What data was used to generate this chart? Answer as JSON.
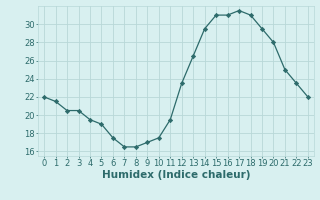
{
  "x": [
    0,
    1,
    2,
    3,
    4,
    5,
    6,
    7,
    8,
    9,
    10,
    11,
    12,
    13,
    14,
    15,
    16,
    17,
    18,
    19,
    20,
    21,
    22,
    23
  ],
  "y": [
    22,
    21.5,
    20.5,
    20.5,
    19.5,
    19,
    17.5,
    16.5,
    16.5,
    17,
    17.5,
    19.5,
    23.5,
    26.5,
    29.5,
    31,
    31,
    31.5,
    31,
    29.5,
    28,
    25,
    23.5,
    22
  ],
  "line_color": "#2d6b6b",
  "marker": "D",
  "marker_size": 2.2,
  "bg_color": "#d8f0f0",
  "grid_color": "#b8d8d8",
  "xlabel": "Humidex (Indice chaleur)",
  "xlabel_color": "#2d6b6b",
  "xlim": [
    -0.5,
    23.5
  ],
  "ylim": [
    15.5,
    32
  ],
  "yticks": [
    16,
    18,
    20,
    22,
    24,
    26,
    28,
    30
  ],
  "xticks": [
    0,
    1,
    2,
    3,
    4,
    5,
    6,
    7,
    8,
    9,
    10,
    11,
    12,
    13,
    14,
    15,
    16,
    17,
    18,
    19,
    20,
    21,
    22,
    23
  ],
  "tick_fontsize": 6,
  "xlabel_fontsize": 7.5
}
